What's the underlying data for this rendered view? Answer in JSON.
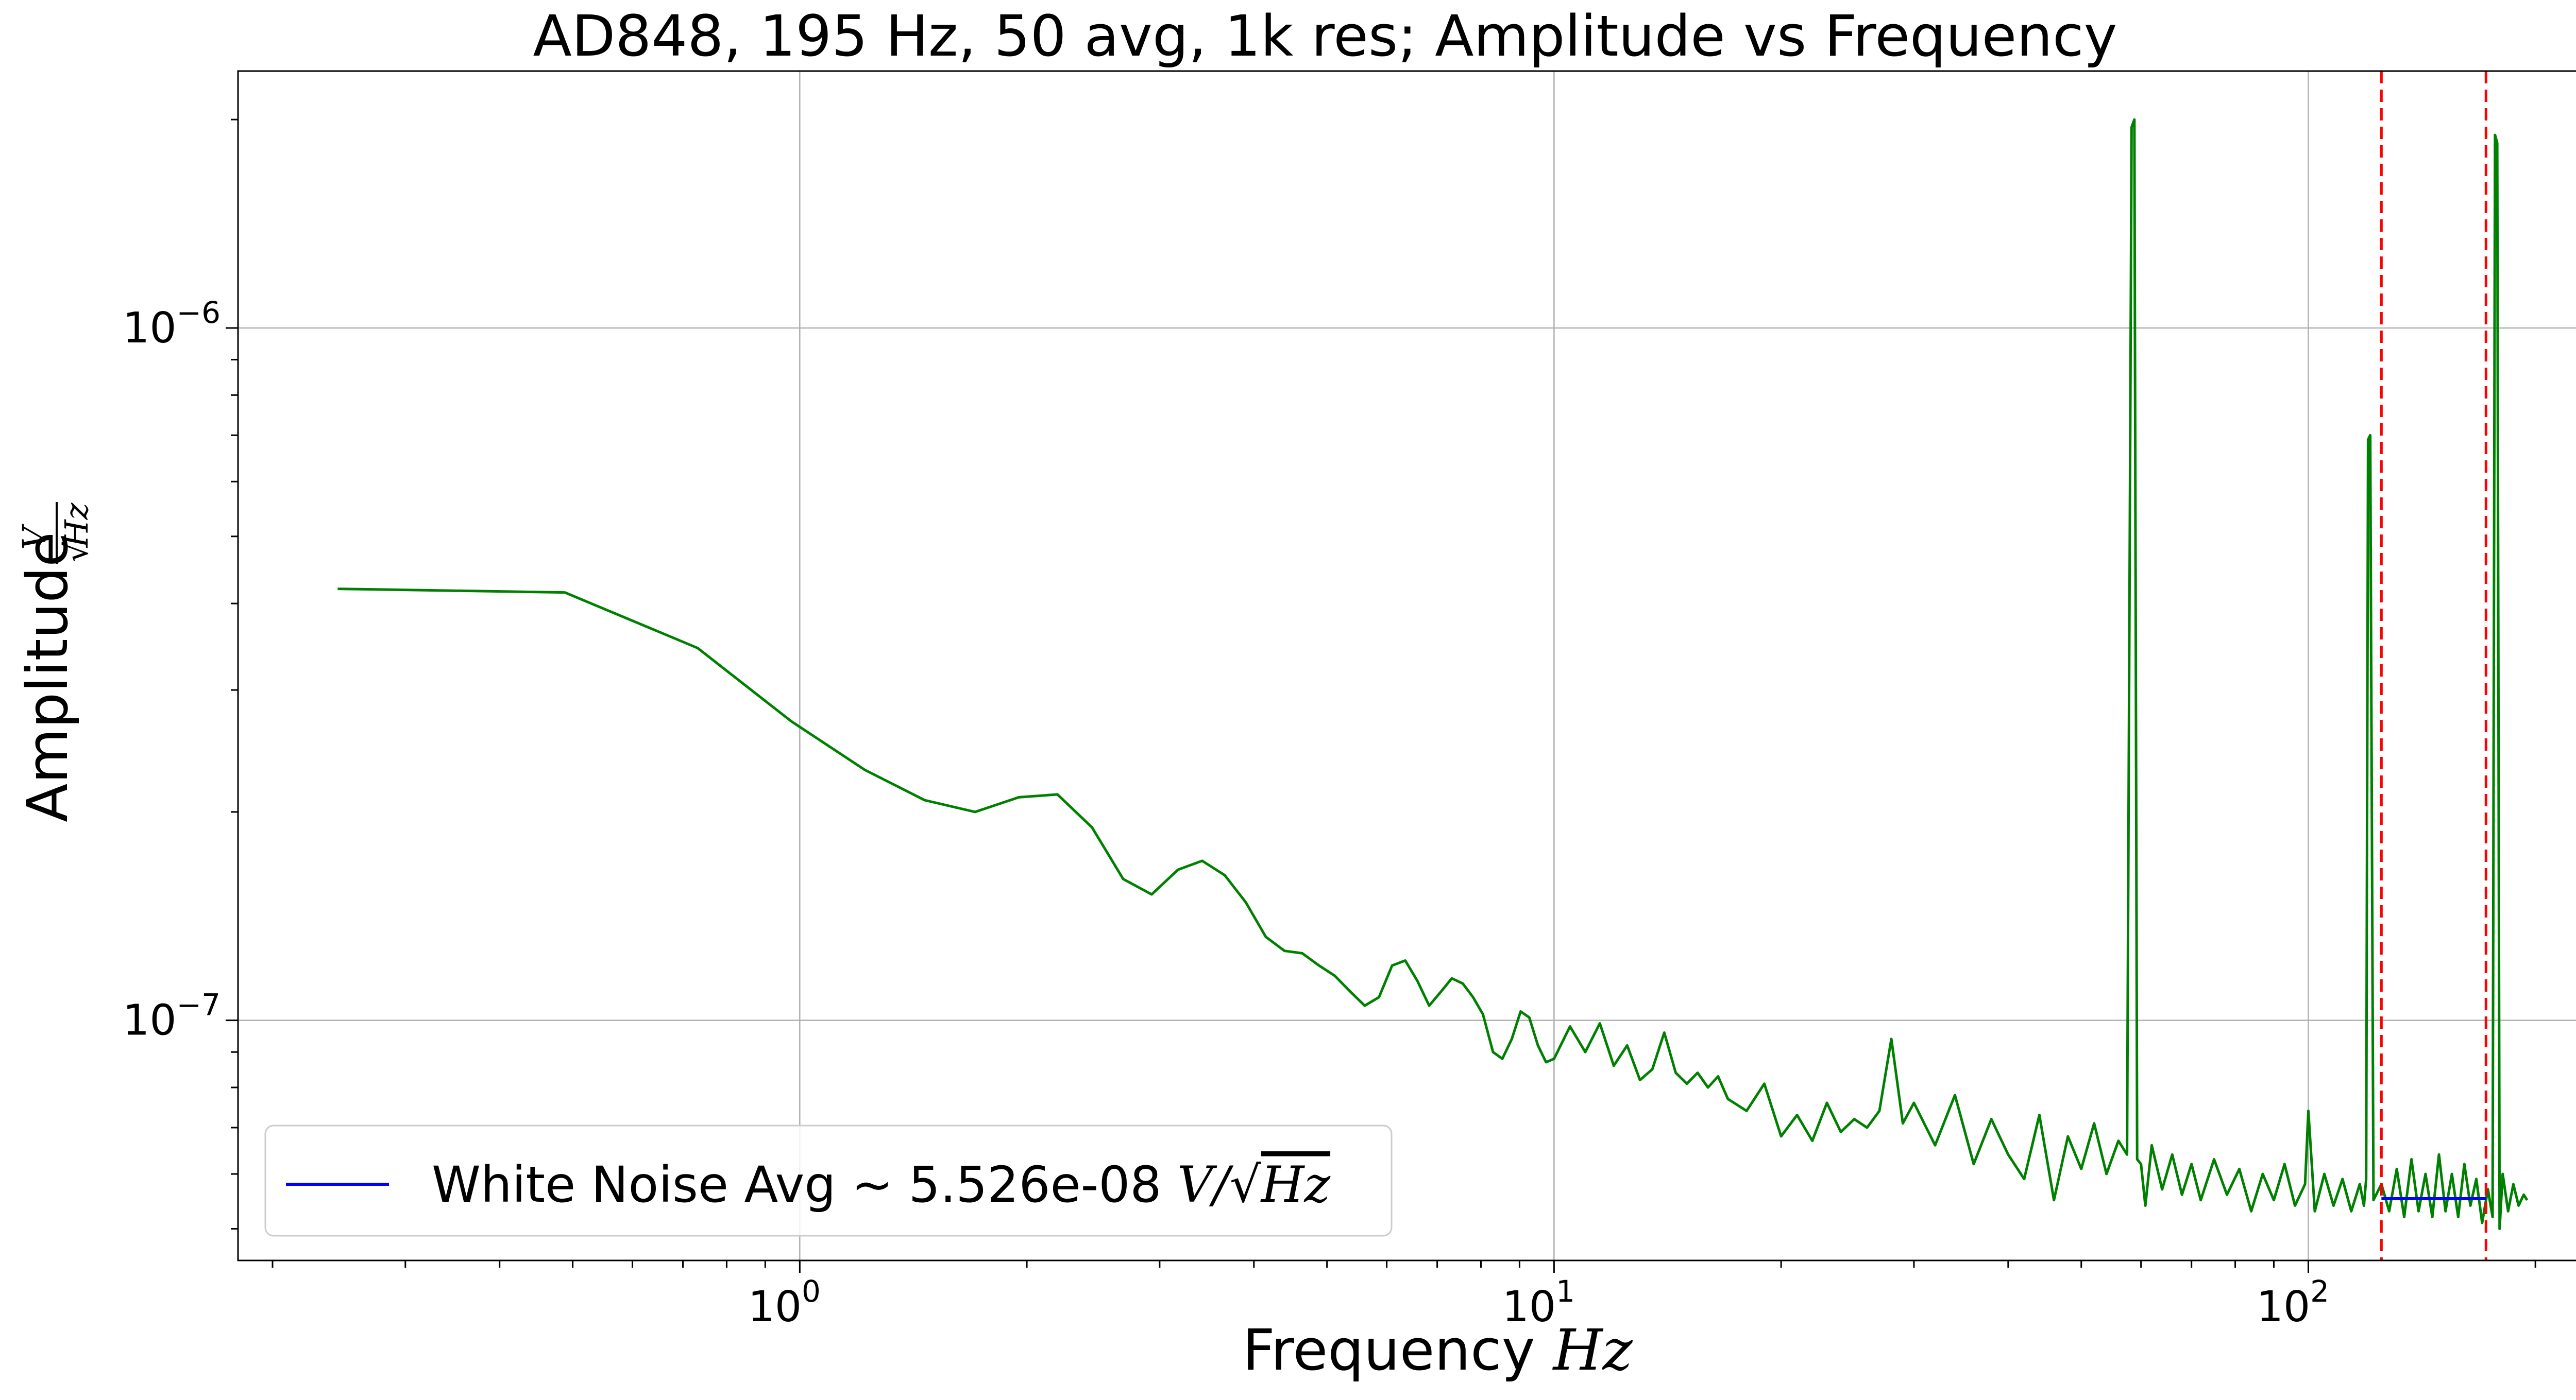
{
  "chart_data": {
    "type": "line",
    "title": "AD848, 195 Hz, 50 avg, 1k res; Amplitude vs Frequency",
    "xlabel": {
      "text": "Frequency ",
      "unit": "Hz"
    },
    "ylabel": {
      "text": "Amplitude ",
      "unit_num": "V",
      "unit_den": "Hz"
    },
    "xscale": "log",
    "yscale": "log",
    "xlim": [
      0.18,
      270
    ],
    "ylim": [
      4.5e-08,
      2.35e-06
    ],
    "grid": true,
    "x_ticks": [
      {
        "value": 1,
        "base": "10",
        "exp": "0"
      },
      {
        "value": 10,
        "base": "10",
        "exp": "1"
      },
      {
        "value": 100,
        "base": "10",
        "exp": "2"
      }
    ],
    "y_ticks": [
      {
        "value": 1e-07,
        "base": "10",
        "exp": "−7"
      },
      {
        "value": 1e-06,
        "base": "10",
        "exp": "−6"
      }
    ],
    "legend": {
      "placement": "lower-left",
      "entries": [
        {
          "label_prefix": "White Noise Avg ~ 5.526e-08 ",
          "label_num": "V",
          "label_den": "Hz",
          "color": "#0000ff"
        }
      ]
    },
    "series": [
      {
        "color": "#008000",
        "x": [
          0.244,
          0.488,
          0.732,
          0.976,
          1.22,
          1.464,
          1.708,
          1.952,
          2.196,
          2.44,
          2.684,
          2.928,
          3.172,
          3.416,
          3.66,
          3.904,
          4.148,
          4.392,
          4.636,
          4.88,
          5.12,
          5.37,
          5.61,
          5.86,
          6.1,
          6.35,
          6.59,
          6.83,
          7.08,
          7.32,
          7.57,
          7.81,
          8.05,
          8.3,
          8.54,
          8.79,
          9.03,
          9.27,
          9.52,
          9.76,
          10.0,
          10.5,
          11.0,
          11.5,
          12.0,
          12.5,
          13.0,
          13.5,
          14.0,
          14.5,
          15.0,
          15.5,
          16.0,
          16.5,
          17.0,
          18.0,
          19.0,
          20.0,
          21.0,
          22.0,
          23.0,
          24.0,
          25.0,
          26.0,
          27.0,
          28.0,
          29.0,
          30.0,
          32.0,
          34.0,
          36.0,
          38.0,
          40.0,
          42.0,
          44.0,
          46.0,
          48.0,
          50.0,
          52.0,
          54.0,
          56.0,
          57.5,
          58.3,
          58.8,
          59.3,
          60.0,
          60.8,
          62.0,
          64.0,
          66.0,
          68.0,
          70.0,
          72.0,
          75.0,
          78.0,
          81.0,
          84.0,
          87.0,
          90.0,
          93.0,
          96.0,
          99.0,
          100.0,
          102.0,
          105.0,
          108.0,
          111.0,
          114.0,
          117.0,
          118.5,
          119.3,
          120.0,
          120.8,
          122.0,
          125.0,
          128.0,
          131.0,
          134.0,
          137.0,
          140.0,
          143.0,
          146.0,
          149.0,
          152.0,
          155.0,
          158.0,
          161.0,
          164.0,
          167.0,
          170.0,
          173.0,
          175.5,
          176.8,
          178.0,
          179.3,
          181.0,
          184.0,
          187.0,
          190.0,
          193.0,
          195.0
        ],
        "y": [
          4.2e-07,
          4.15e-07,
          3.45e-07,
          2.7e-07,
          2.3e-07,
          2.08e-07,
          2e-07,
          2.1e-07,
          2.12e-07,
          1.9e-07,
          1.6e-07,
          1.52e-07,
          1.65e-07,
          1.7e-07,
          1.62e-07,
          1.48e-07,
          1.32e-07,
          1.26e-07,
          1.25e-07,
          1.2e-07,
          1.16e-07,
          1.1e-07,
          1.05e-07,
          1.08e-07,
          1.2e-07,
          1.22e-07,
          1.14e-07,
          1.05e-07,
          1.1e-07,
          1.15e-07,
          1.13e-07,
          1.08e-07,
          1.02e-07,
          9e-08,
          8.8e-08,
          9.4e-08,
          1.03e-07,
          1.01e-07,
          9.2e-08,
          8.7e-08,
          8.8e-08,
          9.8e-08,
          9e-08,
          9.9e-08,
          8.6e-08,
          9.2e-08,
          8.2e-08,
          8.5e-08,
          9.6e-08,
          8.4e-08,
          8.1e-08,
          8.4e-08,
          8e-08,
          8.3e-08,
          7.7e-08,
          7.4e-08,
          8.1e-08,
          6.8e-08,
          7.3e-08,
          6.7e-08,
          7.6e-08,
          6.9e-08,
          7.2e-08,
          7e-08,
          7.4e-08,
          9.4e-08,
          7.1e-08,
          7.6e-08,
          6.6e-08,
          7.8e-08,
          6.2e-08,
          7.2e-08,
          6.4e-08,
          5.9e-08,
          7.3e-08,
          5.5e-08,
          6.8e-08,
          6.1e-08,
          7.1e-08,
          6e-08,
          6.7e-08,
          6.4e-08,
          1.95e-06,
          2e-06,
          6.3e-08,
          6.2e-08,
          5.4e-08,
          6.6e-08,
          5.7e-08,
          6.4e-08,
          5.6e-08,
          6.2e-08,
          5.5e-08,
          6.3e-08,
          5.6e-08,
          6.1e-08,
          5.3e-08,
          6e-08,
          5.5e-08,
          6.2e-08,
          5.4e-08,
          5.8e-08,
          7.4e-08,
          5.3e-08,
          6e-08,
          5.4e-08,
          5.9e-08,
          5.3e-08,
          5.8e-08,
          5.4e-08,
          5.9e-08,
          6.9e-07,
          7e-07,
          5.5e-08,
          5.8e-08,
          5.3e-08,
          6.1e-08,
          5.2e-08,
          6.3e-08,
          5.3e-08,
          6e-08,
          5.2e-08,
          6.4e-08,
          5.3e-08,
          6e-08,
          5.2e-08,
          6.2e-08,
          5.4e-08,
          5.9e-08,
          5.1e-08,
          5.7e-08,
          5.2e-08,
          1.9e-06,
          1.85e-06,
          5e-08,
          6e-08,
          5.3e-08,
          5.8e-08,
          5.4e-08,
          5.6e-08,
          5.5e-08
        ]
      }
    ],
    "white_noise_line": {
      "color": "#0000ff",
      "x": [
        125,
        172
      ],
      "y": [
        5.526e-08,
        5.526e-08
      ]
    },
    "vlines": [
      {
        "x": 125,
        "color": "#ff0000",
        "style": "dashed"
      },
      {
        "x": 172,
        "color": "#ff0000",
        "style": "dashed"
      }
    ]
  }
}
